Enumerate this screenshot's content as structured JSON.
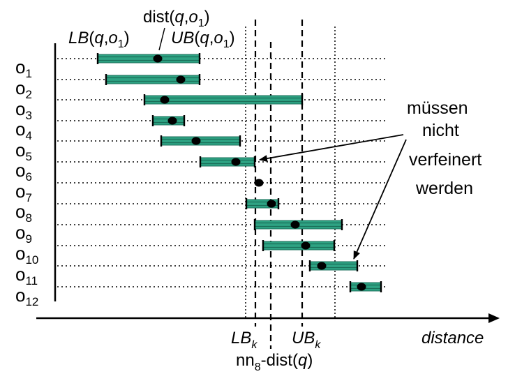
{
  "objects": [
    {
      "base": "o",
      "sub": "1"
    },
    {
      "base": "o",
      "sub": "2"
    },
    {
      "base": "o",
      "sub": "3"
    },
    {
      "base": "o",
      "sub": "4"
    },
    {
      "base": "o",
      "sub": "5"
    },
    {
      "base": "o",
      "sub": "6"
    },
    {
      "base": "o",
      "sub": "7"
    },
    {
      "base": "o",
      "sub": "8"
    },
    {
      "base": "o",
      "sub": "9"
    },
    {
      "base": "o",
      "sub": "10"
    },
    {
      "base": "o",
      "sub": "11"
    },
    {
      "base": "o",
      "sub": "12"
    }
  ],
  "top_labels": {
    "dist_prefix": "dist(",
    "dist_q": "q",
    "dist_comma": ",",
    "dist_o": "o",
    "dist_sub": "1",
    "dist_close": ")",
    "lb_name": "LB",
    "lb_open": "(",
    "lb_q": "q",
    "lb_comma": ",",
    "lb_o": "o",
    "lb_sub": "1",
    "lb_close": ")",
    "ub_name": "UB",
    "ub_open": "(",
    "ub_q": "q",
    "ub_comma": ",",
    "ub_o": "o",
    "ub_sub": "1",
    "ub_close": ")"
  },
  "annotation_lines": [
    "müssen",
    "nicht",
    "verfeinert",
    "werden"
  ],
  "axis": {
    "x_label": "distance",
    "lbk_main": "LB",
    "lbk_sub": "k",
    "ubk_main": "UB",
    "ubk_sub": "k",
    "nn_prefix": "nn",
    "nn_sub": "8",
    "nn_mid": "-dist(",
    "nn_q": "q",
    "nn_close": ")"
  },
  "colors": {
    "bar_fill": "#2ea383",
    "bar_stripe": "#1a6e58",
    "ink": "#000000"
  }
}
